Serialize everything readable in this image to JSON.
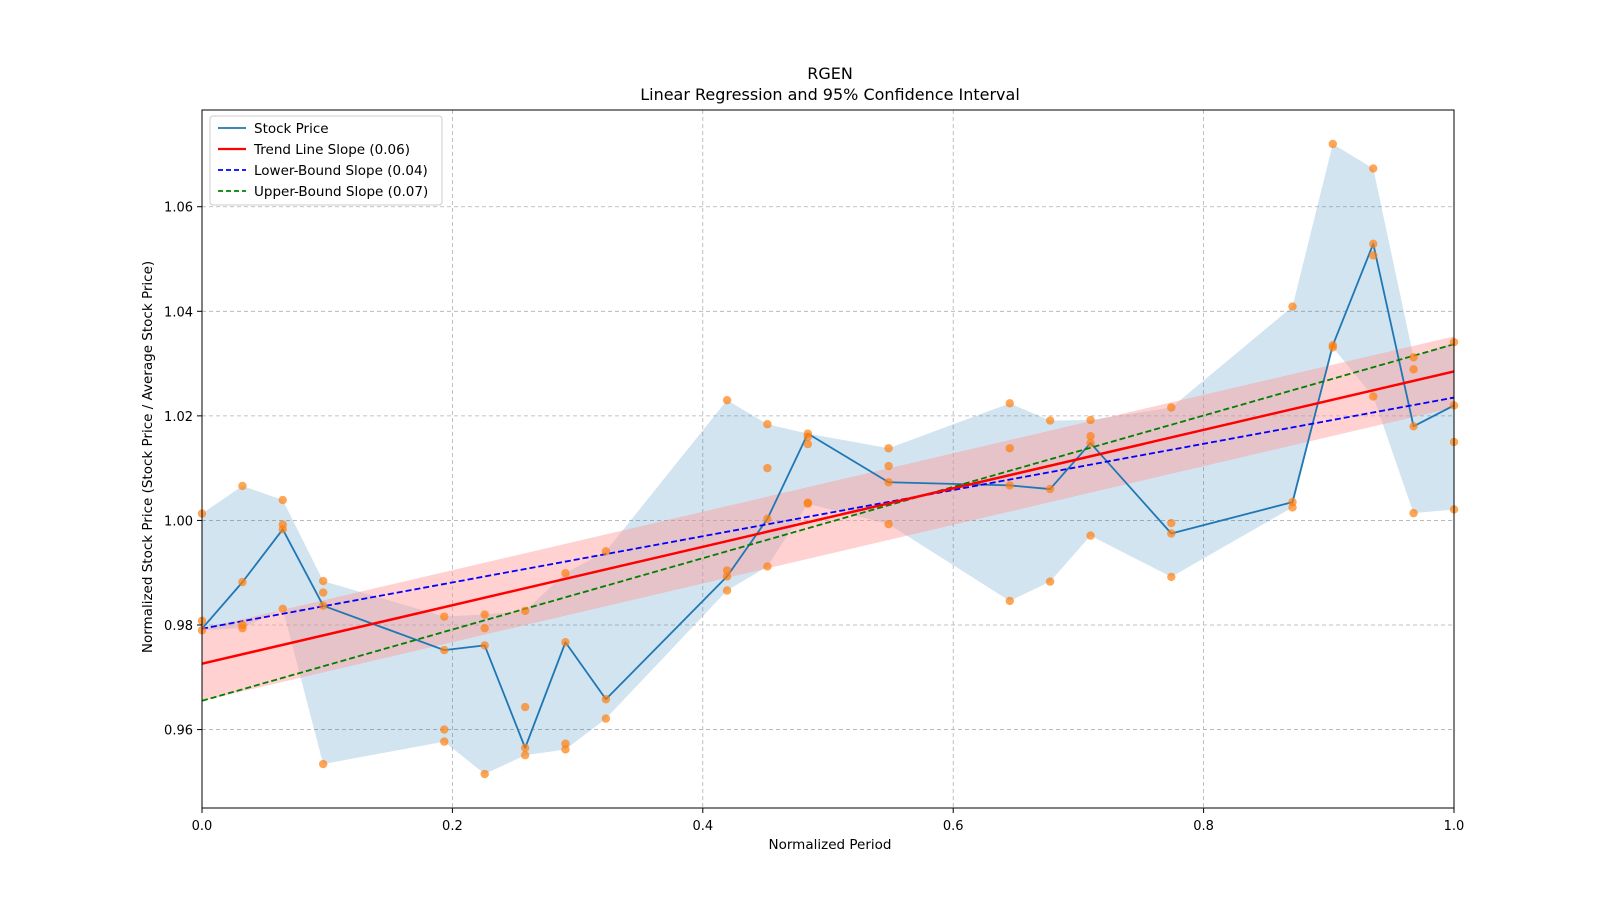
{
  "chart_data": {
    "type": "line",
    "title": "RGEN",
    "subtitle": "Linear Regression and 95% Confidence Interval",
    "xlabel": "Normalized Period",
    "ylabel": "Normalized Stock Price (Stock Price / Average Stock Price)",
    "xlim": [
      0.0,
      1.0
    ],
    "ylim": [
      0.945,
      1.0785
    ],
    "x_ticks": [
      "0.0",
      "0.2",
      "0.4",
      "0.6",
      "0.8",
      "1.0"
    ],
    "x_tick_values": [
      0.0,
      0.2,
      0.4,
      0.6,
      0.8,
      1.0
    ],
    "y_ticks": [
      "0.96",
      "0.98",
      "1.00",
      "1.02",
      "1.04",
      "1.06"
    ],
    "y_tick_values": [
      0.96,
      0.98,
      1.0,
      1.02,
      1.04,
      1.06
    ],
    "grid": true,
    "legend_position": "upper-left",
    "colors": {
      "stock": "#1f77b4",
      "band": "#1f77b4",
      "points": "#ff7f0e",
      "trend": "#ff0000",
      "ci_band": "#ff9999",
      "lower": "#0000ff",
      "upper": "#008000",
      "grid": "#b0b0b0"
    },
    "series": [
      {
        "name": "Stock Price",
        "kind": "line",
        "x": [
          0.0,
          0.0323,
          0.0645,
          0.0968,
          0.1935,
          0.2258,
          0.2581,
          0.2903,
          0.3226,
          0.4194,
          0.4516,
          0.4839,
          0.5484,
          0.6452,
          0.6774,
          0.7097,
          0.7742,
          0.871,
          0.9032,
          0.9355,
          0.9677,
          1.0
        ],
        "y": [
          0.9793,
          0.9882,
          0.9983,
          0.9837,
          0.9752,
          0.9761,
          0.9565,
          0.9767,
          0.9658,
          0.9893,
          1.0003,
          1.0166,
          1.0073,
          1.0067,
          1.006,
          1.0148,
          0.9975,
          1.0035,
          1.0335,
          1.0529,
          1.018,
          1.022
        ]
      },
      {
        "name": "Trend Line Slope (0.06)",
        "kind": "line",
        "x": [
          0.0,
          1.0
        ],
        "y": [
          0.9726,
          1.0285
        ]
      },
      {
        "name": "Lower-Bound Slope (0.04)",
        "kind": "dashed-line",
        "x": [
          0.0,
          1.0
        ],
        "y": [
          0.9793,
          1.0235
        ]
      },
      {
        "name": "Upper-Bound Slope (0.07)",
        "kind": "dashed-line",
        "x": [
          0.0,
          1.0
        ],
        "y": [
          0.9655,
          1.0337
        ]
      }
    ],
    "price_band": {
      "x": [
        0.0,
        0.0323,
        0.0645,
        0.0968,
        0.1935,
        0.2258,
        0.2581,
        0.2903,
        0.3226,
        0.4194,
        0.4516,
        0.4839,
        0.5484,
        0.6452,
        0.6774,
        0.7097,
        0.7742,
        0.871,
        0.9032,
        0.9355,
        0.9677,
        1.0
      ],
      "upper": [
        1.0013,
        1.0066,
        1.0039,
        0.9884,
        0.9816,
        0.982,
        0.9827,
        0.9899,
        0.9941,
        1.023,
        1.0184,
        1.0166,
        1.0138,
        1.0224,
        1.0191,
        1.0192,
        1.0216,
        1.0409,
        1.072,
        1.0673,
        1.0312,
        1.0341
      ],
      "lower": [
        0.979,
        0.9794,
        0.9831,
        0.9534,
        0.9577,
        0.9515,
        0.9551,
        0.9562,
        0.9621,
        0.9866,
        0.9912,
        1.0032,
        0.9993,
        0.9846,
        0.9883,
        0.9971,
        0.9892,
        1.0025,
        1.0331,
        1.0237,
        1.0014,
        1.0021
      ]
    },
    "trend_ci_band": {
      "x": [
        0.0,
        1.0
      ],
      "upper": [
        0.9793,
        1.0352
      ],
      "lower": [
        0.9655,
        1.0216
      ]
    },
    "scatter_points": [
      [
        0.0,
        1.0013
      ],
      [
        0.0,
        0.9808
      ],
      [
        0.0,
        0.979
      ],
      [
        0.0323,
        1.0066
      ],
      [
        0.0323,
        0.9882
      ],
      [
        0.0323,
        0.98
      ],
      [
        0.0323,
        0.9794
      ],
      [
        0.0645,
        1.0039
      ],
      [
        0.0645,
        0.9992
      ],
      [
        0.0645,
        0.9983
      ],
      [
        0.0645,
        0.9831
      ],
      [
        0.0968,
        0.9884
      ],
      [
        0.0968,
        0.9862
      ],
      [
        0.0968,
        0.9837
      ],
      [
        0.0968,
        0.9534
      ],
      [
        0.1935,
        0.9816
      ],
      [
        0.1935,
        0.9752
      ],
      [
        0.1935,
        0.96
      ],
      [
        0.1935,
        0.9577
      ],
      [
        0.2258,
        0.982
      ],
      [
        0.2258,
        0.9794
      ],
      [
        0.2258,
        0.9761
      ],
      [
        0.2258,
        0.9515
      ],
      [
        0.2581,
        0.9827
      ],
      [
        0.2581,
        0.9643
      ],
      [
        0.2581,
        0.9565
      ],
      [
        0.2581,
        0.9551
      ],
      [
        0.2903,
        0.9899
      ],
      [
        0.2903,
        0.9767
      ],
      [
        0.2903,
        0.9573
      ],
      [
        0.2903,
        0.9562
      ],
      [
        0.3226,
        0.9941
      ],
      [
        0.3226,
        0.9658
      ],
      [
        0.3226,
        0.9621
      ],
      [
        0.4194,
        1.023
      ],
      [
        0.4194,
        0.9904
      ],
      [
        0.4194,
        0.9893
      ],
      [
        0.4194,
        0.9866
      ],
      [
        0.4516,
        1.0184
      ],
      [
        0.4516,
        1.01
      ],
      [
        0.4516,
        1.0003
      ],
      [
        0.4516,
        0.9912
      ],
      [
        0.4839,
        1.0166
      ],
      [
        0.4839,
        1.016
      ],
      [
        0.4839,
        1.0146
      ],
      [
        0.4839,
        1.0034
      ],
      [
        0.4839,
        1.0032
      ],
      [
        0.5484,
        1.0138
      ],
      [
        0.5484,
        1.0104
      ],
      [
        0.5484,
        1.0073
      ],
      [
        0.5484,
        0.9993
      ],
      [
        0.6452,
        1.0224
      ],
      [
        0.6452,
        1.0138
      ],
      [
        0.6452,
        1.0067
      ],
      [
        0.6452,
        0.9846
      ],
      [
        0.6774,
        1.0191
      ],
      [
        0.6774,
        1.006
      ],
      [
        0.6774,
        0.9883
      ],
      [
        0.7097,
        1.0192
      ],
      [
        0.7097,
        1.0161
      ],
      [
        0.7097,
        1.0148
      ],
      [
        0.7097,
        0.9971
      ],
      [
        0.7742,
        1.0216
      ],
      [
        0.7742,
        0.9995
      ],
      [
        0.7742,
        0.9975
      ],
      [
        0.7742,
        0.9892
      ],
      [
        0.871,
        1.0409
      ],
      [
        0.871,
        1.0035
      ],
      [
        0.871,
        1.0025
      ],
      [
        0.9032,
        1.072
      ],
      [
        0.9032,
        1.0335
      ],
      [
        0.9032,
        1.0331
      ],
      [
        0.9355,
        1.0673
      ],
      [
        0.9355,
        1.0529
      ],
      [
        0.9355,
        1.0507
      ],
      [
        0.9355,
        1.0237
      ],
      [
        0.9677,
        1.0312
      ],
      [
        0.9677,
        1.0289
      ],
      [
        0.9677,
        1.018
      ],
      [
        0.9677,
        1.0014
      ],
      [
        1.0,
        1.0341
      ],
      [
        1.0,
        1.022
      ],
      [
        1.0,
        1.015
      ],
      [
        1.0,
        1.0021
      ]
    ]
  },
  "legend": {
    "stock_price": "Stock Price",
    "trend_line": "Trend Line Slope (0.06)",
    "lower_bound": "Lower-Bound Slope (0.04)",
    "upper_bound": "Upper-Bound Slope (0.07)"
  }
}
